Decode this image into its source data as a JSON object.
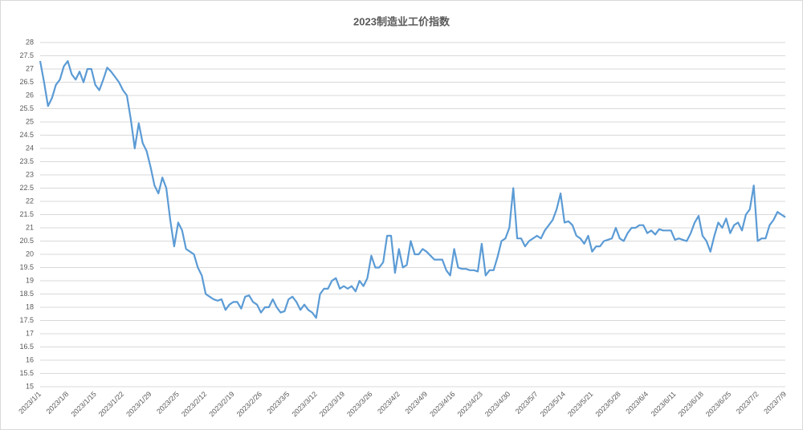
{
  "chart_data": {
    "type": "line",
    "title": "2023制造业工价指数",
    "categories": [
      "2023/1/1",
      null,
      null,
      null,
      null,
      null,
      null,
      "2023/1/8",
      null,
      null,
      null,
      null,
      null,
      null,
      "2023/1/15",
      null,
      null,
      null,
      null,
      null,
      null,
      "2023/1/22",
      null,
      null,
      null,
      null,
      null,
      null,
      "2023/1/29",
      null,
      null,
      null,
      null,
      null,
      null,
      "2023/2/5",
      null,
      null,
      null,
      null,
      null,
      null,
      "2023/2/12",
      null,
      null,
      null,
      null,
      null,
      null,
      "2023/2/19",
      null,
      null,
      null,
      null,
      null,
      null,
      "2023/2/26",
      null,
      null,
      null,
      null,
      null,
      null,
      "2023/3/5",
      null,
      null,
      null,
      null,
      null,
      null,
      "2023/3/12",
      null,
      null,
      null,
      null,
      null,
      null,
      "2023/3/19",
      null,
      null,
      null,
      null,
      null,
      null,
      "2023/3/26",
      null,
      null,
      null,
      null,
      null,
      null,
      "2023/4/2",
      null,
      null,
      null,
      null,
      null,
      null,
      "2023/4/9",
      null,
      null,
      null,
      null,
      null,
      null,
      "2023/4/16",
      null,
      null,
      null,
      null,
      null,
      null,
      "2023/4/23",
      null,
      null,
      null,
      null,
      null,
      null,
      "2023/4/30",
      null,
      null,
      null,
      null,
      null,
      null,
      "2023/5/7",
      null,
      null,
      null,
      null,
      null,
      null,
      "2023/5/14",
      null,
      null,
      null,
      null,
      null,
      null,
      "2023/5/21",
      null,
      null,
      null,
      null,
      null,
      null,
      "2023/5/28",
      null,
      null,
      null,
      null,
      null,
      null,
      "2023/6/4",
      null,
      null,
      null,
      null,
      null,
      null,
      "2023/6/11",
      null,
      null,
      null,
      null,
      null,
      null,
      "2023/6/18",
      null,
      null,
      null,
      null,
      null,
      null,
      "2023/6/25",
      null,
      null,
      null,
      null,
      null,
      null,
      "2023/7/2",
      null,
      null,
      null,
      null,
      null,
      null,
      "2023/7/9"
    ],
    "values": [
      27.3,
      26.5,
      25.6,
      25.9,
      26.4,
      26.6,
      27.1,
      27.3,
      26.8,
      26.6,
      26.9,
      26.5,
      27.0,
      27.0,
      26.4,
      26.2,
      26.6,
      27.05,
      26.9,
      26.7,
      26.5,
      26.2,
      26.0,
      25.1,
      24.0,
      24.95,
      24.2,
      23.9,
      23.3,
      22.6,
      22.3,
      22.9,
      22.5,
      21.3,
      20.3,
      21.2,
      20.9,
      20.2,
      20.1,
      20.0,
      19.5,
      19.2,
      18.5,
      18.4,
      18.3,
      18.25,
      18.3,
      17.9,
      18.1,
      18.2,
      18.2,
      17.95,
      18.4,
      18.45,
      18.2,
      18.1,
      17.8,
      18.0,
      18.0,
      18.3,
      18.0,
      17.8,
      17.85,
      18.3,
      18.4,
      18.2,
      17.9,
      18.1,
      17.9,
      17.8,
      17.6,
      18.5,
      18.7,
      18.7,
      19.0,
      19.1,
      18.7,
      18.8,
      18.7,
      18.8,
      18.6,
      19.0,
      18.8,
      19.1,
      19.95,
      19.5,
      19.5,
      19.7,
      20.7,
      20.7,
      19.3,
      20.2,
      19.5,
      19.6,
      20.5,
      20.0,
      20.0,
      20.2,
      20.1,
      19.95,
      19.8,
      19.8,
      19.8,
      19.4,
      19.2,
      20.2,
      19.5,
      19.45,
      19.45,
      19.4,
      19.4,
      19.35,
      20.4,
      19.2,
      19.4,
      19.4,
      19.9,
      20.5,
      20.6,
      21.0,
      22.5,
      20.6,
      20.6,
      20.3,
      20.5,
      20.6,
      20.7,
      20.6,
      20.9,
      21.1,
      21.3,
      21.7,
      22.3,
      21.2,
      21.25,
      21.1,
      20.7,
      20.6,
      20.4,
      20.7,
      20.1,
      20.3,
      20.3,
      20.5,
      20.55,
      20.6,
      21.0,
      20.6,
      20.5,
      20.8,
      21.0,
      21.0,
      21.1,
      21.1,
      20.8,
      20.9,
      20.75,
      20.95,
      20.9,
      20.9,
      20.9,
      20.55,
      20.6,
      20.55,
      20.5,
      20.8,
      21.2,
      21.45,
      20.7,
      20.5,
      20.1,
      20.7,
      21.2,
      21.0,
      21.35,
      20.8,
      21.1,
      21.2,
      20.9,
      21.5,
      21.7,
      22.6,
      20.5,
      20.6,
      20.6,
      21.1,
      21.3,
      21.6,
      21.5,
      21.4
    ],
    "color": "#5b9bd5",
    "ylim": [
      15,
      28
    ],
    "yticks": [
      15,
      15.5,
      16,
      16.5,
      17,
      17.5,
      18,
      18.5,
      19,
      19.5,
      20,
      20.5,
      21,
      21.5,
      22,
      22.5,
      23,
      23.5,
      24,
      24.5,
      25,
      25.5,
      26,
      26.5,
      27,
      27.5,
      28
    ],
    "grid": true
  }
}
